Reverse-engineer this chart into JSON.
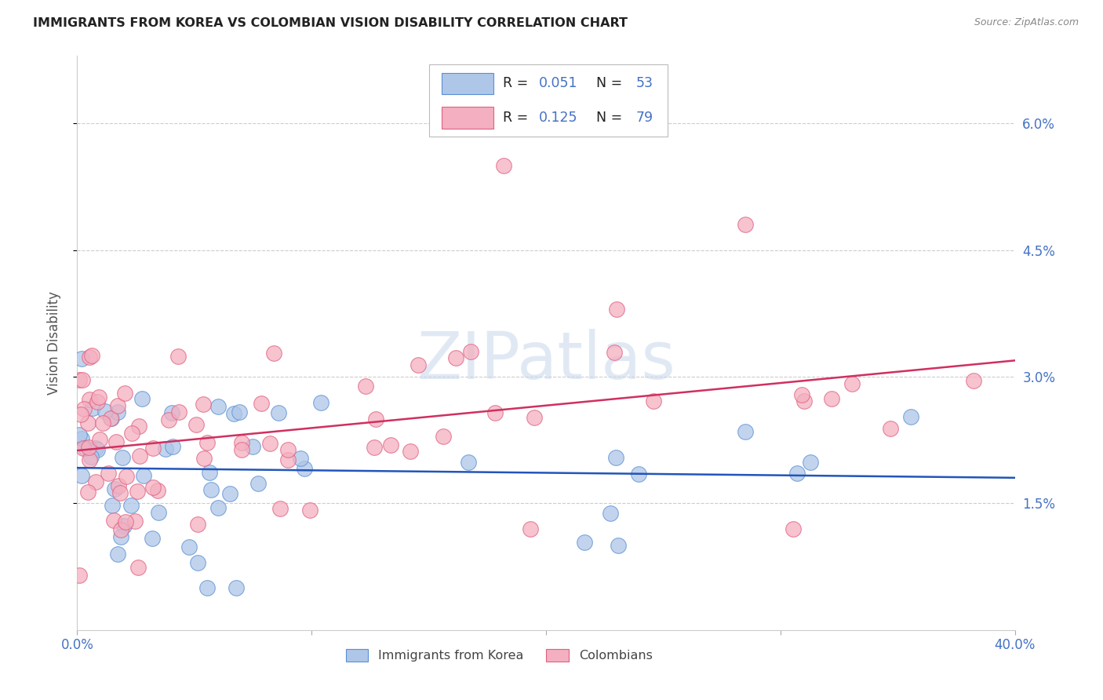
{
  "title": "IMMIGRANTS FROM KOREA VS COLOMBIAN VISION DISABILITY CORRELATION CHART",
  "source": "Source: ZipAtlas.com",
  "ylabel": "Vision Disability",
  "ytick_labels": [
    "1.5%",
    "3.0%",
    "4.5%",
    "6.0%"
  ],
  "ytick_values": [
    0.015,
    0.03,
    0.045,
    0.06
  ],
  "xlim": [
    0.0,
    0.4
  ],
  "ylim": [
    0.0,
    0.068
  ],
  "legend_korea_r": "0.051",
  "legend_korea_n": "53",
  "legend_colombia_r": "0.125",
  "legend_colombia_n": "79",
  "watermark": "ZIPatlas",
  "korea_color": "#aec6e8",
  "colombia_color": "#f4afc0",
  "korea_edge_color": "#5b8fd4",
  "colombia_edge_color": "#e06080",
  "korea_line_color": "#2255bb",
  "colombia_line_color": "#d03060",
  "background_color": "#ffffff",
  "grid_color": "#cccccc",
  "tick_color": "#4472c4",
  "title_color": "#222222",
  "source_color": "#888888"
}
